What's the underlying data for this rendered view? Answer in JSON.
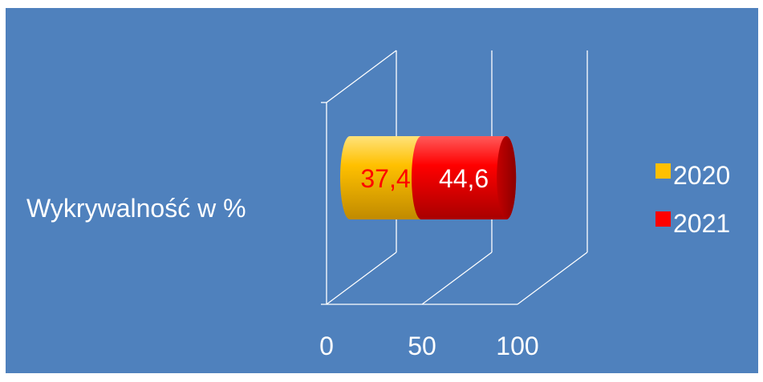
{
  "chart_data": {
    "type": "bar",
    "orientation": "horizontal",
    "stacked": true,
    "style": "3d-cylinder",
    "categories": [
      "Wykrywalność w %"
    ],
    "series": [
      {
        "name": "2020",
        "values": [
          37.4
        ],
        "label": "37,4",
        "color": "#ffc000",
        "label_color": "#ff0000"
      },
      {
        "name": "2021",
        "values": [
          44.6
        ],
        "label": "44,6",
        "color": "#ff0000",
        "label_color": "#ffffff"
      }
    ],
    "x_ticks": [
      "0",
      "50",
      "100"
    ],
    "xlim": [
      0,
      100
    ],
    "grid": true,
    "legend_position": "right",
    "background": "#4f81bd"
  }
}
